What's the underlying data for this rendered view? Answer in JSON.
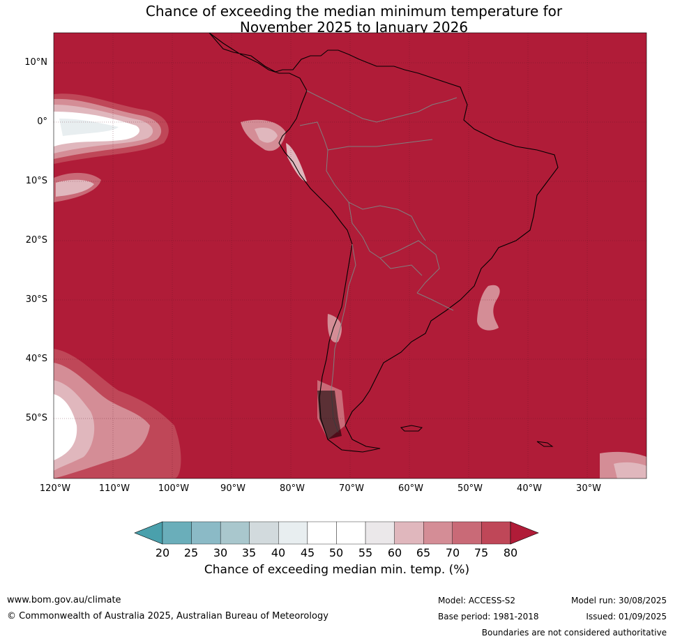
{
  "title": {
    "line1": "Chance of exceeding the median minimum temperature for",
    "line2": "November 2025 to January 2026"
  },
  "map": {
    "region": "South America",
    "background_color": "#b01c38",
    "lat_labels": [
      "10°N",
      "0°",
      "10°S",
      "20°S",
      "30°S",
      "40°S",
      "50°S"
    ],
    "lon_labels": [
      "120°W",
      "110°W",
      "100°W",
      "90°W",
      "80°W",
      "70°W",
      "60°W",
      "50°W",
      "40°W",
      "30°W"
    ]
  },
  "colorbar": {
    "ticks": [
      "20",
      "25",
      "30",
      "35",
      "40",
      "45",
      "50",
      "55",
      "60",
      "65",
      "70",
      "75",
      "80"
    ],
    "colors": [
      "#4aa0ac",
      "#6aaeba",
      "#8bbac6",
      "#a9c7cd",
      "#d2dadd",
      "#e8eef0",
      "#ffffff",
      "#ffffff",
      "#ebe8ea",
      "#e0b7bd",
      "#d48d96",
      "#c96a77",
      "#bf4758",
      "#b01c38"
    ],
    "label": "Chance of exceeding median min. temp. (%)"
  },
  "footer": {
    "website": "www.bom.gov.au/climate",
    "copyright": "© Commonwealth of Australia 2025, Australian Bureau of Meteorology",
    "model": "Model: ACCESS-S2",
    "base_period": "Base period: 1981-2018",
    "model_run": "Model run: 30/08/2025",
    "issued": "Issued: 01/09/2025",
    "disclaimer": "Boundaries are not considered authoritative"
  }
}
